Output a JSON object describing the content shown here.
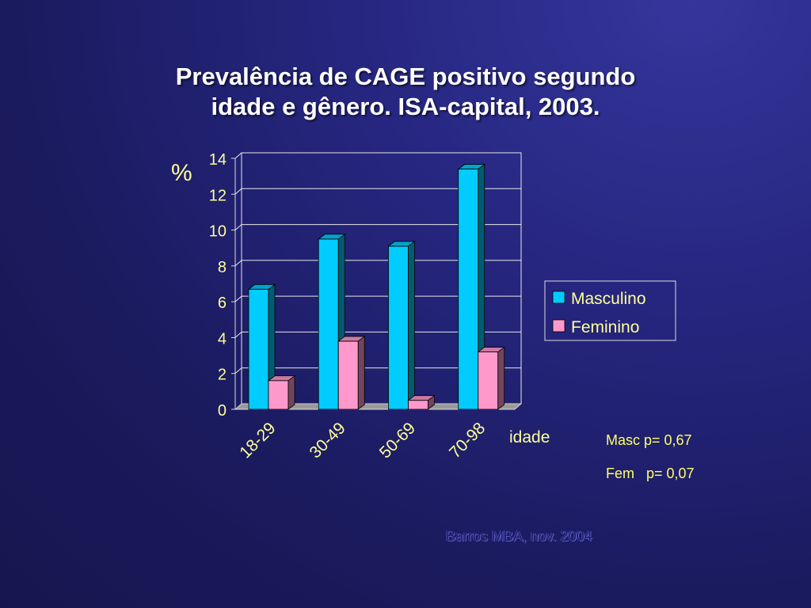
{
  "slide": {
    "title_line1": "Prevalência de CAGE positivo segundo",
    "title_line2": "idade e gênero. ISA-capital, 2003.",
    "notes": [
      "Masc p= 0,67",
      "Fem   p= 0,07"
    ],
    "source": "Barros MBA, nov. 2004"
  },
  "colors": {
    "background": "#232375",
    "masculino": "#00ccff",
    "feminino": "#ff99cc",
    "axis_text": "#ffff99",
    "notes_text": "#ffff66"
  },
  "chart_data": {
    "type": "bar",
    "title": "",
    "xlabel": "idade",
    "ylabel": "%",
    "categories": [
      "18-29",
      "30-49",
      "50-69",
      "70-98"
    ],
    "series": [
      {
        "name": "Masculino",
        "values": [
          6.7,
          9.5,
          9.1,
          13.4
        ]
      },
      {
        "name": "Feminino",
        "values": [
          1.6,
          3.8,
          0.5,
          3.2
        ]
      }
    ],
    "ylim": [
      0,
      14
    ],
    "yticks": [
      0,
      2,
      4,
      6,
      8,
      10,
      12,
      14
    ],
    "grid": true,
    "legend_position": "right",
    "style": "3d-clustered"
  }
}
